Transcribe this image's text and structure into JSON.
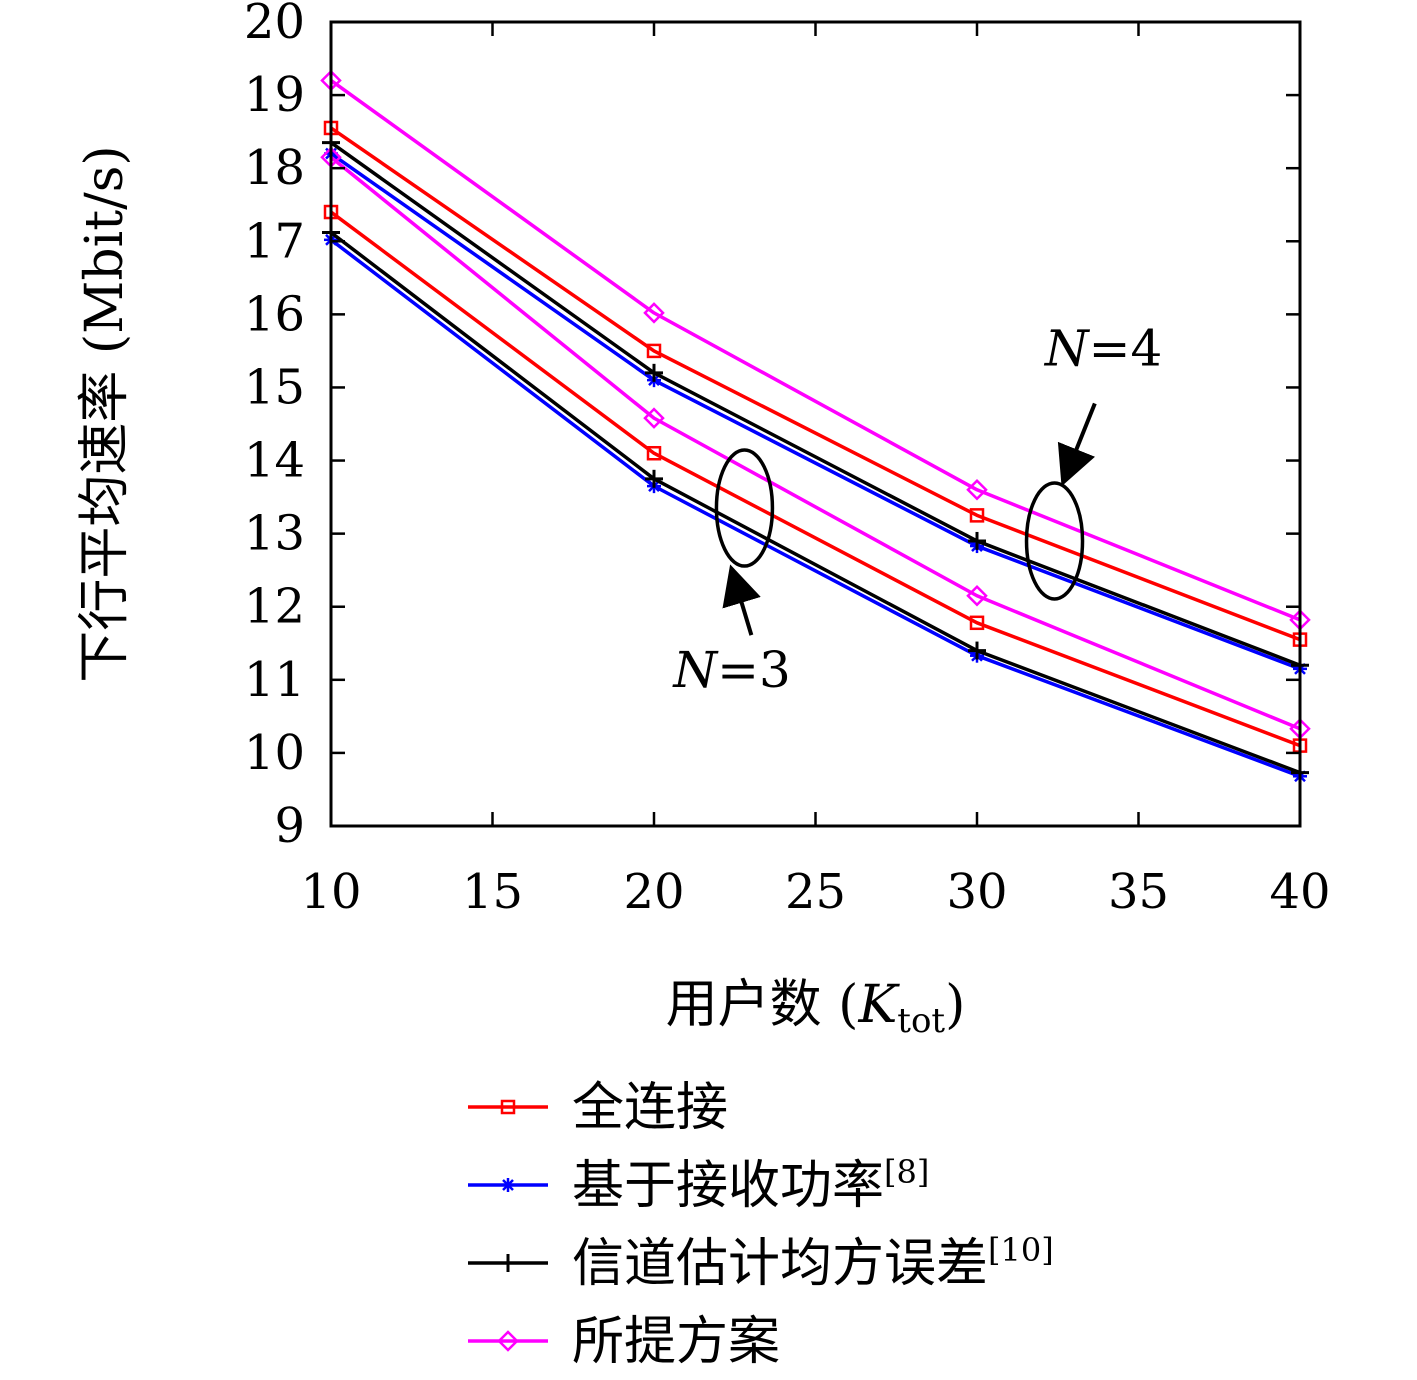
{
  "chart_data": {
    "type": "line",
    "xlabel_main": "用户数 (",
    "xlabel_var": "K",
    "xlabel_sub": "tot",
    "xlabel_close": ")",
    "ylabel": "下行平均速率 (Mbit/s)",
    "xlim": [
      10,
      40
    ],
    "ylim": [
      9,
      20
    ],
    "xticks": [
      "10",
      "15",
      "20",
      "25",
      "30",
      "35",
      "40"
    ],
    "yticks": [
      "9",
      "10",
      "11",
      "12",
      "13",
      "14",
      "15",
      "16",
      "17",
      "18",
      "19",
      "20"
    ],
    "x": [
      10,
      20,
      30,
      40
    ],
    "grid": false,
    "legend_position": "bottom",
    "series": [
      {
        "key": "full",
        "name": "全连接",
        "ref": "",
        "color": "#ff0000",
        "marker": "square",
        "group": "N=4",
        "values": [
          18.55,
          15.5,
          13.25,
          11.55
        ]
      },
      {
        "key": "rx",
        "name": "基于接收功率",
        "ref": "[8]",
        "color": "#0000ff",
        "marker": "star",
        "group": "N=4",
        "values": [
          18.2,
          15.1,
          12.83,
          11.15
        ]
      },
      {
        "key": "mse",
        "name": "信道估计均方误差",
        "ref": "[10]",
        "color": "#000000",
        "marker": "plus",
        "group": "N=4",
        "values": [
          18.35,
          15.2,
          12.9,
          11.2
        ]
      },
      {
        "key": "prop",
        "name": "所提方案",
        "ref": "",
        "color": "#ff00ff",
        "marker": "diamond",
        "group": "N=4",
        "values": [
          19.2,
          16.02,
          13.6,
          11.82
        ]
      },
      {
        "key": "full",
        "name": "全连接",
        "ref": "",
        "color": "#ff0000",
        "marker": "square",
        "group": "N=3",
        "values": [
          17.4,
          14.1,
          11.78,
          10.1
        ]
      },
      {
        "key": "rx",
        "name": "基于接收功率",
        "ref": "[8]",
        "color": "#0000ff",
        "marker": "star",
        "group": "N=3",
        "values": [
          17.02,
          13.65,
          11.33,
          9.68
        ]
      },
      {
        "key": "mse",
        "name": "信道估计均方误差",
        "ref": "[10]",
        "color": "#000000",
        "marker": "plus",
        "group": "N=3",
        "values": [
          17.12,
          13.75,
          11.4,
          9.73
        ]
      },
      {
        "key": "prop",
        "name": "所提方案",
        "ref": "",
        "color": "#ff00ff",
        "marker": "diamond",
        "group": "N=3",
        "values": [
          18.15,
          14.58,
          12.15,
          10.33
        ]
      }
    ],
    "legend": [
      {
        "name": "全连接",
        "ref": "",
        "color": "#ff0000",
        "marker": "square"
      },
      {
        "name": "基于接收功率",
        "ref": "[8]",
        "color": "#0000ff",
        "marker": "star"
      },
      {
        "name": "信道估计均方误差",
        "ref": "[10]",
        "color": "#000000",
        "marker": "plus"
      },
      {
        "name": "所提方案",
        "ref": "",
        "color": "#ff00ff",
        "marker": "diamond"
      }
    ],
    "annotations": [
      {
        "var": "N",
        "text": "=4",
        "ellipse_center": [
          32.4,
          12.9
        ],
        "label_at": [
          32.1,
          15.3
        ]
      },
      {
        "var": "N",
        "text": "=3",
        "ellipse_center": [
          22.8,
          13.35
        ],
        "label_at": [
          20.6,
          10.9
        ]
      }
    ]
  }
}
